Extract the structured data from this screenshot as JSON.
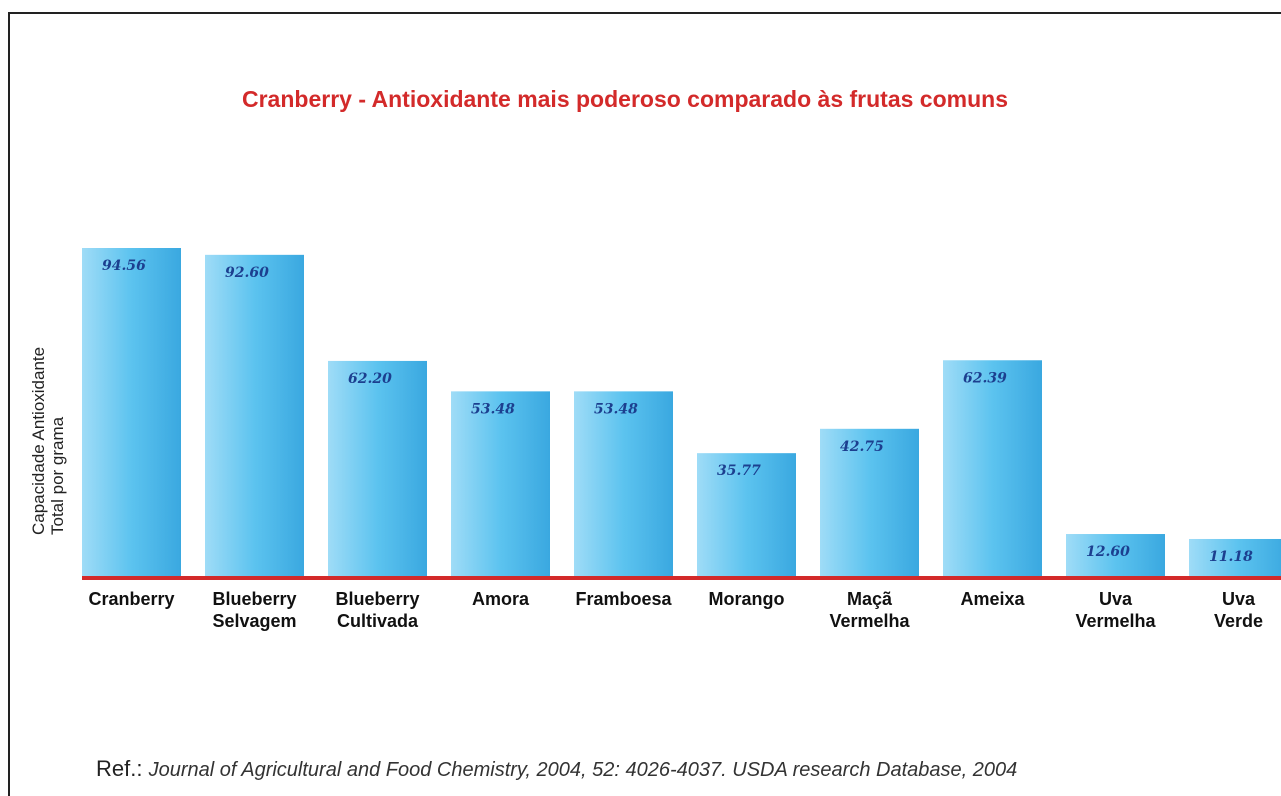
{
  "chart_data": {
    "type": "bar",
    "title": "Cranberry - Antioxidante mais poderoso comparado às frutas comuns",
    "y_label": "Capacidade Antioxidante Total por grama",
    "categories": [
      "Cranberry",
      "Blueberry Selvagem",
      "Blueberry Cultivada",
      "Amora",
      "Framboesa",
      "Morango",
      "Maçã Vermelha",
      "Ameixa",
      "Uva Vermelha",
      "Uva Verde"
    ],
    "values": [
      94.56,
      92.6,
      62.2,
      53.48,
      53.48,
      35.77,
      42.75,
      62.39,
      12.6,
      11.18
    ],
    "value_labels": [
      "94.56",
      "92.60",
      "62.20",
      "53.48",
      "53.48",
      "35.77",
      "42.75",
      "62.39",
      "12.60",
      "11.18"
    ],
    "color": "#5cc3ef",
    "reference_prefix": "Ref.:",
    "reference": "Journal of Agricultural and Food Chemistry, 2004, 52: 4026-4037. USDA research Database, 2004"
  }
}
